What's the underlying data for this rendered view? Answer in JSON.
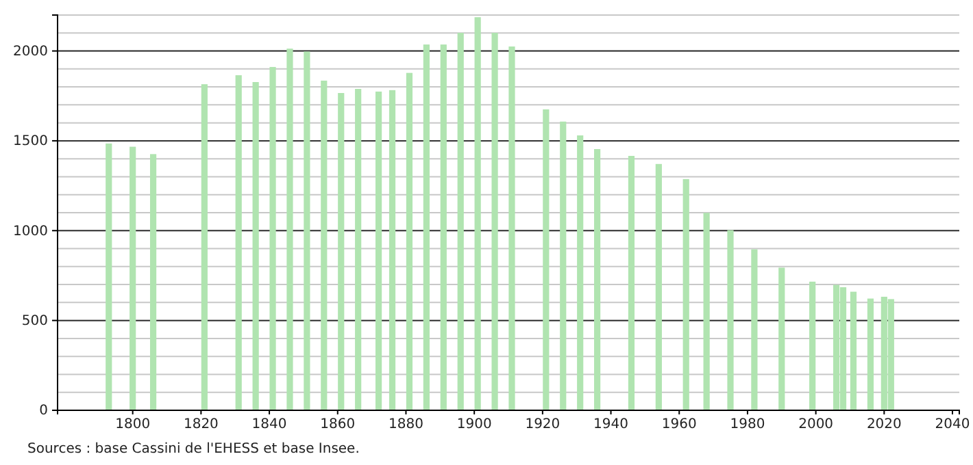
{
  "chart_data": {
    "type": "bar",
    "x": [
      1793,
      1800,
      1806,
      1821,
      1831,
      1836,
      1841,
      1846,
      1851,
      1856,
      1861,
      1866,
      1872,
      1876,
      1881,
      1886,
      1891,
      1896,
      1901,
      1906,
      1911,
      1921,
      1926,
      1931,
      1936,
      1946,
      1954,
      1962,
      1968,
      1975,
      1982,
      1990,
      1999,
      2006,
      2008,
      2011,
      2016,
      2020,
      2022
    ],
    "values": [
      1485,
      1467,
      1426,
      1815,
      1865,
      1827,
      1911,
      2013,
      1997,
      1835,
      1766,
      1789,
      1774,
      1782,
      1878,
      2036,
      2036,
      2101,
      2188,
      2101,
      2025,
      1675,
      1607,
      1530,
      1454,
      1416,
      1371,
      1287,
      1099,
      1003,
      896,
      794,
      716,
      698,
      685,
      660,
      622,
      632,
      619
    ],
    "color": "#b0e4b0",
    "xlim": [
      1778,
      2042
    ],
    "xticks": [
      1800,
      1820,
      1840,
      1860,
      1880,
      1900,
      1920,
      1940,
      1960,
      1980,
      2000,
      2020,
      2040
    ],
    "ylim": [
      0,
      2200
    ],
    "yticks": [
      0,
      500,
      1000,
      1500,
      2000
    ],
    "grid": "y",
    "annotations": [
      "Sources : base Cassini de l'EHESS et base Insee."
    ]
  }
}
